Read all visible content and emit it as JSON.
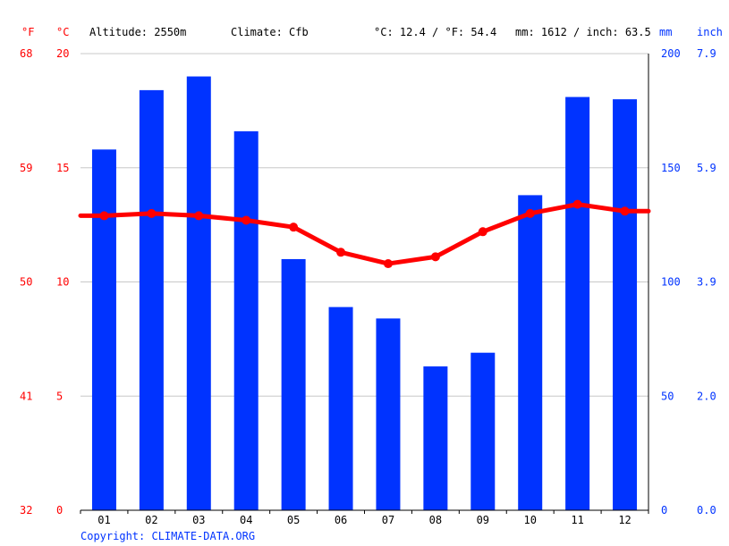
{
  "header": {
    "unit_f": "°F",
    "unit_c": "°C",
    "altitude": "Altitude: 2550m",
    "climate": "Climate: Cfb",
    "temp_summary": "°C: 12.4 / °F: 54.4",
    "precip_summary": "mm: 1612 / inch: 63.5",
    "unit_mm": "mm",
    "unit_inch": "inch"
  },
  "footer": {
    "copyright": "Copyright: CLIMATE-DATA.ORG"
  },
  "colors": {
    "temperature": "#ff0000",
    "precipitation": "#0033ff",
    "grid": "#c8c8c8"
  },
  "chart_data": {
    "type": "bar",
    "categories": [
      "01",
      "02",
      "03",
      "04",
      "05",
      "06",
      "07",
      "08",
      "09",
      "10",
      "11",
      "12"
    ],
    "series": [
      {
        "values": [
          158,
          184,
          190,
          166,
          110,
          89,
          84,
          63,
          69,
          138,
          181,
          180
        ],
        "chart_type": "bar",
        "axis": "right"
      },
      {
        "values": [
          12.9,
          13.0,
          12.9,
          12.7,
          12.4,
          11.3,
          10.8,
          11.1,
          12.2,
          13.0,
          13.4,
          13.1
        ],
        "chart_type": "line",
        "axis": "left"
      }
    ],
    "left_axis": {
      "c_ticks": [
        "0",
        "5",
        "10",
        "15",
        "20"
      ],
      "f_ticks": [
        "32",
        "41",
        "50",
        "59",
        "68"
      ],
      "range_c": [
        0,
        20
      ]
    },
    "right_axis": {
      "mm_ticks": [
        "0",
        "50",
        "100",
        "150",
        "200"
      ],
      "inch_ticks": [
        "0.0",
        "2.0",
        "3.9",
        "5.9",
        "7.9"
      ],
      "range_mm": [
        0,
        200
      ]
    },
    "grid": true
  }
}
